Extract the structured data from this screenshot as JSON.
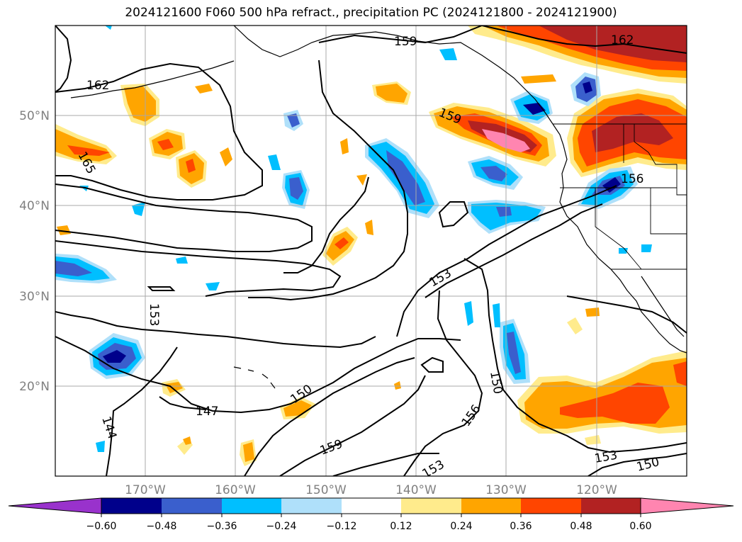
{
  "title": "2024121600 F060 500 hPa refract., precipitation PC (2024121800 - 2024121900)",
  "lon_labels": [
    "170°W",
    "160°W",
    "150°W",
    "140°W",
    "130°W",
    "120°W"
  ],
  "lat_labels": [
    "50°N",
    "40°N",
    "30°N",
    "20°N"
  ],
  "contour_labels": [
    "159",
    "162",
    "162",
    "159",
    "165",
    "156",
    "153",
    "153",
    "150",
    "147",
    "150",
    "144",
    "156",
    "159",
    "153",
    "153",
    "150"
  ],
  "colorbar": {
    "ticks": [
      "−0.60",
      "−0.48",
      "−0.36",
      "−0.24",
      "−0.12",
      "0.12",
      "0.24",
      "0.36",
      "0.48",
      "0.60"
    ],
    "colors": [
      "#9932cc",
      "#00008b",
      "#3a5fcd",
      "#00bfff",
      "#afe0fa",
      "#ffffff",
      "#ffeb8c",
      "#ffa500",
      "#ff4500",
      "#b22222",
      "#ff85b0"
    ]
  },
  "colors": {
    "dark_blue": "#00008b",
    "blue": "#3a5fcd",
    "sky": "#00bfff",
    "light_blue": "#afe0fa",
    "light_yellow": "#ffeb8c",
    "orange": "#ffa500",
    "red_orange": "#ff4500",
    "firebrick": "#b22222",
    "pink": "#ff85b0"
  }
}
